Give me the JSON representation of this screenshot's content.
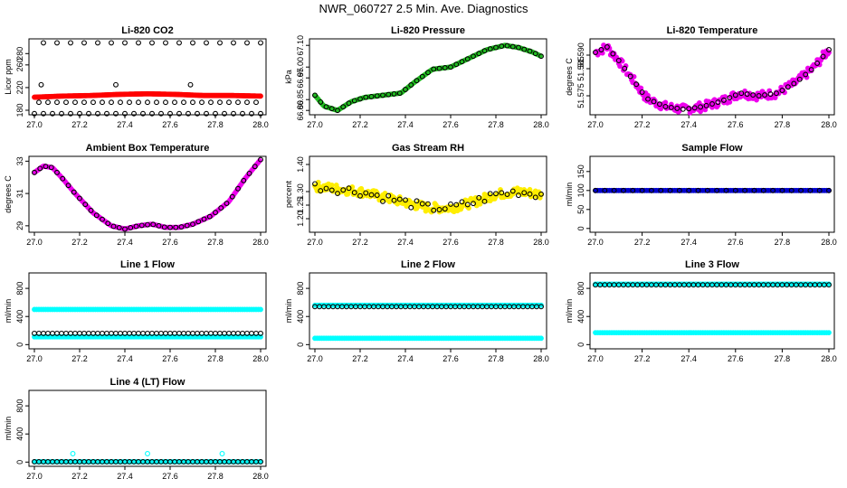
{
  "main_title": "NWR_060727  2.5 Min. Ave. Diagnostics",
  "chart_data": [
    {
      "id": "co2",
      "type": "scatter",
      "title": "Li-820 CO2",
      "ylabel": "Licor ppm",
      "xlim": [
        27.0,
        28.0
      ],
      "ylim": [
        172,
        306
      ],
      "xticks": [
        27.0,
        27.2,
        27.4,
        27.6,
        27.8,
        28.0
      ],
      "xtick_labels": [
        "27.0",
        "27.2",
        "27.4",
        "27.6",
        "27.8",
        "28.0"
      ],
      "yticks": [
        180,
        220,
        260,
        280
      ],
      "ytick_labels": [
        "180",
        "220",
        "260",
        "280"
      ],
      "series": [
        {
          "name": "raw",
          "color": "#ff0000",
          "marker": "filled",
          "style": "band",
          "x0": 27.0,
          "x1": 28.0,
          "y": [
            203,
            205,
            206,
            208,
            209,
            208,
            206,
            206,
            205
          ]
        },
        {
          "name": "avg-low",
          "color": "#000000",
          "marker": "open",
          "step": 0.04,
          "x0": 27.0,
          "x1": 28.0,
          "y": 174
        },
        {
          "name": "avg-mid",
          "color": "#000000",
          "marker": "open",
          "step": 0.04,
          "x0": 27.02,
          "x1": 28.0,
          "y": 194
        },
        {
          "name": "avg-high",
          "color": "#000000",
          "marker": "open",
          "step": 0.06,
          "x0": 27.04,
          "x1": 28.0,
          "y": 299
        },
        {
          "name": "avg-220",
          "color": "#000000",
          "marker": "open",
          "step": 0.33,
          "x0": 27.03,
          "x1": 28.0,
          "y": 225
        }
      ]
    },
    {
      "id": "pressure",
      "type": "scatter",
      "title": "Li-820 Pressure",
      "ylabel": "kPa",
      "xlim": [
        27.0,
        28.0
      ],
      "ylim": [
        66.78,
        67.13
      ],
      "xticks": [
        27.0,
        27.2,
        27.4,
        27.6,
        27.8,
        28.0
      ],
      "xtick_labels": [
        "27.0",
        "27.2",
        "27.4",
        "27.6",
        "27.8",
        "28.0"
      ],
      "yticks": [
        66.8,
        66.85,
        66.95,
        67.0,
        67.1
      ],
      "ytick_labels": [
        "66.80",
        "66.85",
        "66.95",
        "67.00",
        "67.10"
      ],
      "series": [
        {
          "name": "raw",
          "color": "#22bb22",
          "marker": "filled",
          "style": "curve",
          "x": [
            27.0,
            27.04,
            27.1,
            27.16,
            27.22,
            27.3,
            27.38,
            27.44,
            27.52,
            27.6,
            27.68,
            27.76,
            27.84,
            27.9,
            27.96,
            28.0
          ],
          "y": [
            66.87,
            66.82,
            66.8,
            66.84,
            66.86,
            66.87,
            66.88,
            66.93,
            66.99,
            67.0,
            67.04,
            67.08,
            67.1,
            67.09,
            67.07,
            67.05
          ]
        },
        {
          "name": "avg",
          "color": "#000000",
          "marker": "open",
          "style": "curve",
          "x": [
            27.0,
            27.04,
            27.1,
            27.16,
            27.22,
            27.3,
            27.38,
            27.44,
            27.52,
            27.6,
            27.68,
            27.76,
            27.84,
            27.9,
            27.96,
            28.0
          ],
          "y": [
            66.87,
            66.82,
            66.8,
            66.84,
            66.86,
            66.87,
            66.88,
            66.93,
            66.99,
            67.0,
            67.04,
            67.08,
            67.1,
            67.09,
            67.07,
            67.05
          ]
        }
      ]
    },
    {
      "id": "temp",
      "type": "scatter",
      "title": "Li-820 Temperature",
      "ylabel": "degrees C",
      "xlim": [
        27.0,
        28.0
      ],
      "ylim": [
        51.568,
        51.596
      ],
      "xticks": [
        27.0,
        27.2,
        27.4,
        27.6,
        27.8,
        28.0
      ],
      "xtick_labels": [
        "27.0",
        "27.2",
        "27.4",
        "27.6",
        "27.8",
        "28.0"
      ],
      "yticks": [
        51.575,
        51.585,
        51.59
      ],
      "ytick_labels": [
        "51.575",
        "51.585",
        "51.590"
      ],
      "series": [
        {
          "name": "raw",
          "color": "#ee00ee",
          "marker": "filled",
          "style": "noisy",
          "x": [
            27.0,
            27.05,
            27.1,
            27.16,
            27.22,
            27.3,
            27.38,
            27.46,
            27.54,
            27.62,
            27.7,
            27.78,
            27.86,
            27.93,
            28.0
          ],
          "y": [
            51.591,
            51.593,
            51.588,
            51.581,
            51.574,
            51.571,
            51.57,
            51.571,
            51.573,
            51.576,
            51.575,
            51.576,
            51.58,
            51.585,
            51.592
          ]
        },
        {
          "name": "avg",
          "color": "#000000",
          "marker": "open",
          "style": "curve",
          "x": [
            27.0,
            27.05,
            27.1,
            27.16,
            27.22,
            27.3,
            27.38,
            27.46,
            27.54,
            27.62,
            27.7,
            27.78,
            27.86,
            27.93,
            28.0
          ],
          "y": [
            51.591,
            51.593,
            51.588,
            51.581,
            51.574,
            51.571,
            51.57,
            51.571,
            51.573,
            51.576,
            51.575,
            51.576,
            51.58,
            51.585,
            51.592
          ]
        }
      ]
    },
    {
      "id": "ambient",
      "type": "scatter",
      "title": "Ambient Box Temperature",
      "ylabel": "degrees C",
      "xlim": [
        27.0,
        28.0
      ],
      "ylim": [
        28.6,
        33.3
      ],
      "xticks": [
        27.0,
        27.2,
        27.4,
        27.6,
        27.8,
        28.0
      ],
      "xtick_labels": [
        "27.0",
        "27.2",
        "27.4",
        "27.6",
        "27.8",
        "28.0"
      ],
      "yticks": [
        29,
        31,
        33
      ],
      "ytick_labels": [
        "29",
        "31",
        "33"
      ],
      "series": [
        {
          "name": "raw",
          "color": "#ee00ee",
          "marker": "filled",
          "style": "curve",
          "x": [
            27.0,
            27.04,
            27.08,
            27.12,
            27.18,
            27.26,
            27.34,
            27.4,
            27.46,
            27.52,
            27.58,
            27.64,
            27.7,
            27.78,
            27.86,
            27.93,
            28.0
          ],
          "y": [
            32.3,
            32.7,
            32.6,
            32.0,
            31.0,
            29.8,
            29.0,
            28.8,
            29.0,
            29.1,
            28.9,
            28.9,
            29.1,
            29.6,
            30.5,
            31.9,
            33.1
          ]
        },
        {
          "name": "avg",
          "color": "#000000",
          "marker": "open",
          "style": "curve",
          "x": [
            27.0,
            27.04,
            27.08,
            27.12,
            27.18,
            27.26,
            27.34,
            27.4,
            27.46,
            27.52,
            27.58,
            27.64,
            27.7,
            27.78,
            27.86,
            27.93,
            28.0
          ],
          "y": [
            32.3,
            32.7,
            32.6,
            32.0,
            31.0,
            29.8,
            29.0,
            28.8,
            29.0,
            29.1,
            28.9,
            28.9,
            29.1,
            29.6,
            30.5,
            31.9,
            33.1
          ]
        }
      ]
    },
    {
      "id": "rh",
      "type": "scatter",
      "title": "Gas Stream RH",
      "ylabel": "percent",
      "xlim": [
        27.0,
        28.0
      ],
      "ylim": [
        1.15,
        1.43
      ],
      "xticks": [
        27.0,
        27.2,
        27.4,
        27.6,
        27.8,
        28.0
      ],
      "xtick_labels": [
        "27.0",
        "27.2",
        "27.4",
        "27.6",
        "27.8",
        "28.0"
      ],
      "yticks": [
        1.2,
        1.25,
        1.3,
        1.4
      ],
      "ytick_labels": [
        "1.20",
        "1.25",
        "1.30",
        "1.40"
      ],
      "series": [
        {
          "name": "raw",
          "color": "#ffee00",
          "marker": "filled",
          "style": "noisy",
          "x": [
            27.0,
            27.1,
            27.2,
            27.3,
            27.4,
            27.5,
            27.6,
            27.7,
            27.8,
            27.9,
            28.0
          ],
          "y": [
            1.32,
            1.31,
            1.3,
            1.28,
            1.26,
            1.24,
            1.24,
            1.26,
            1.29,
            1.3,
            1.29
          ]
        },
        {
          "name": "avg",
          "color": "#000000",
          "marker": "open",
          "style": "noisy",
          "x": [
            27.0,
            27.1,
            27.2,
            27.3,
            27.4,
            27.5,
            27.6,
            27.7,
            27.8,
            27.9,
            28.0
          ],
          "y": [
            1.32,
            1.31,
            1.3,
            1.28,
            1.26,
            1.24,
            1.24,
            1.26,
            1.29,
            1.3,
            1.29
          ]
        }
      ]
    },
    {
      "id": "sample",
      "type": "scatter",
      "title": "Sample Flow",
      "ylabel": "ml/min",
      "xlim": [
        27.0,
        28.0
      ],
      "ylim": [
        -10,
        190
      ],
      "xticks": [
        27.0,
        27.2,
        27.4,
        27.6,
        27.8,
        28.0
      ],
      "xtick_labels": [
        "27.0",
        "27.2",
        "27.4",
        "27.6",
        "27.8",
        "28.0"
      ],
      "yticks": [
        0,
        50,
        100,
        150
      ],
      "ytick_labels": [
        "0",
        "50",
        "100",
        "150"
      ],
      "series": [
        {
          "name": "raw",
          "color": "#0000cc",
          "marker": "filled",
          "style": "flat",
          "step": 0.01,
          "x0": 27.0,
          "x1": 28.0,
          "y": 100
        },
        {
          "name": "avg",
          "color": "#000000",
          "marker": "open",
          "style": "flat",
          "step": 0.04,
          "x0": 27.0,
          "x1": 28.0,
          "y": 100
        }
      ]
    },
    {
      "id": "line1",
      "type": "scatter",
      "title": "Line 1 Flow",
      "ylabel": "ml/min",
      "xlim": [
        27.0,
        28.0
      ],
      "ylim": [
        -60,
        1020
      ],
      "xticks": [
        27.0,
        27.2,
        27.4,
        27.6,
        27.8,
        28.0
      ],
      "xtick_labels": [
        "27.0",
        "27.2",
        "27.4",
        "27.6",
        "27.8",
        "28.0"
      ],
      "yticks": [
        0,
        400,
        800
      ],
      "ytick_labels": [
        "0",
        "400",
        "800"
      ],
      "series": [
        {
          "name": "cyan-hi",
          "color": "#00ffff",
          "marker": "filled",
          "style": "flat",
          "step": 0.01,
          "x0": 27.0,
          "x1": 28.0,
          "y": 500
        },
        {
          "name": "cyan-lo",
          "color": "#00ffff",
          "marker": "filled",
          "style": "flat",
          "step": 0.01,
          "x0": 27.0,
          "x1": 28.0,
          "y": 110
        },
        {
          "name": "avg",
          "color": "#000000",
          "marker": "open",
          "style": "flat",
          "step": 0.02,
          "x0": 27.0,
          "x1": 28.0,
          "y": 160
        }
      ]
    },
    {
      "id": "line2",
      "type": "scatter",
      "title": "Line 2 Flow",
      "ylabel": "ml/min",
      "xlim": [
        27.0,
        28.0
      ],
      "ylim": [
        -60,
        1020
      ],
      "xticks": [
        27.0,
        27.2,
        27.4,
        27.6,
        27.8,
        28.0
      ],
      "xtick_labels": [
        "27.0",
        "27.2",
        "27.4",
        "27.6",
        "27.8",
        "28.0"
      ],
      "yticks": [
        0,
        400,
        800
      ],
      "ytick_labels": [
        "0",
        "400",
        "800"
      ],
      "series": [
        {
          "name": "cyan-hi",
          "color": "#00ffff",
          "marker": "filled",
          "style": "flat",
          "step": 0.01,
          "x0": 27.0,
          "x1": 28.0,
          "y": 560
        },
        {
          "name": "cyan-lo",
          "color": "#00ffff",
          "marker": "filled",
          "style": "flat",
          "step": 0.01,
          "x0": 27.0,
          "x1": 28.0,
          "y": 90
        },
        {
          "name": "avg",
          "color": "#000000",
          "marker": "open",
          "style": "flat",
          "step": 0.02,
          "x0": 27.0,
          "x1": 28.0,
          "y": 540
        }
      ]
    },
    {
      "id": "line3",
      "type": "scatter",
      "title": "Line 3 Flow",
      "ylabel": "ml/min",
      "xlim": [
        27.0,
        28.0
      ],
      "ylim": [
        -60,
        1020
      ],
      "xticks": [
        27.0,
        27.2,
        27.4,
        27.6,
        27.8,
        28.0
      ],
      "xtick_labels": [
        "27.0",
        "27.2",
        "27.4",
        "27.6",
        "27.8",
        "28.0"
      ],
      "yticks": [
        0,
        400,
        800
      ],
      "ytick_labels": [
        "0",
        "400",
        "800"
      ],
      "series": [
        {
          "name": "cyan-hi",
          "color": "#00ffff",
          "marker": "filled",
          "style": "flat",
          "step": 0.01,
          "x0": 27.0,
          "x1": 28.0,
          "y": 860
        },
        {
          "name": "cyan-lo",
          "color": "#00ffff",
          "marker": "filled",
          "style": "flat",
          "step": 0.01,
          "x0": 27.0,
          "x1": 28.0,
          "y": 170
        },
        {
          "name": "avg",
          "color": "#000000",
          "marker": "open",
          "style": "flat",
          "step": 0.02,
          "x0": 27.0,
          "x1": 28.0,
          "y": 850
        }
      ]
    },
    {
      "id": "line4",
      "type": "scatter",
      "title": "Line 4 (LT) Flow",
      "ylabel": "ml/min",
      "xlim": [
        27.0,
        28.0
      ],
      "ylim": [
        -60,
        1020
      ],
      "xticks": [
        27.0,
        27.2,
        27.4,
        27.6,
        27.8,
        28.0
      ],
      "xtick_labels": [
        "27.0",
        "27.2",
        "27.4",
        "27.6",
        "27.8",
        "28.0"
      ],
      "yticks": [
        0,
        400,
        800
      ],
      "ytick_labels": [
        "0",
        "400",
        "800"
      ],
      "series": [
        {
          "name": "cyan",
          "color": "#00ffff",
          "marker": "filled",
          "style": "flat",
          "step": 0.01,
          "x0": 27.0,
          "x1": 28.0,
          "y": 5
        },
        {
          "name": "cyan-spikes",
          "color": "#00ffff",
          "marker": "open",
          "style": "points",
          "x": [
            27.17,
            27.5,
            27.83
          ],
          "y": [
            120,
            120,
            120
          ]
        },
        {
          "name": "avg",
          "color": "#000000",
          "marker": "open",
          "style": "flat",
          "step": 0.02,
          "x0": 27.0,
          "x1": 28.0,
          "y": 5
        }
      ]
    }
  ]
}
